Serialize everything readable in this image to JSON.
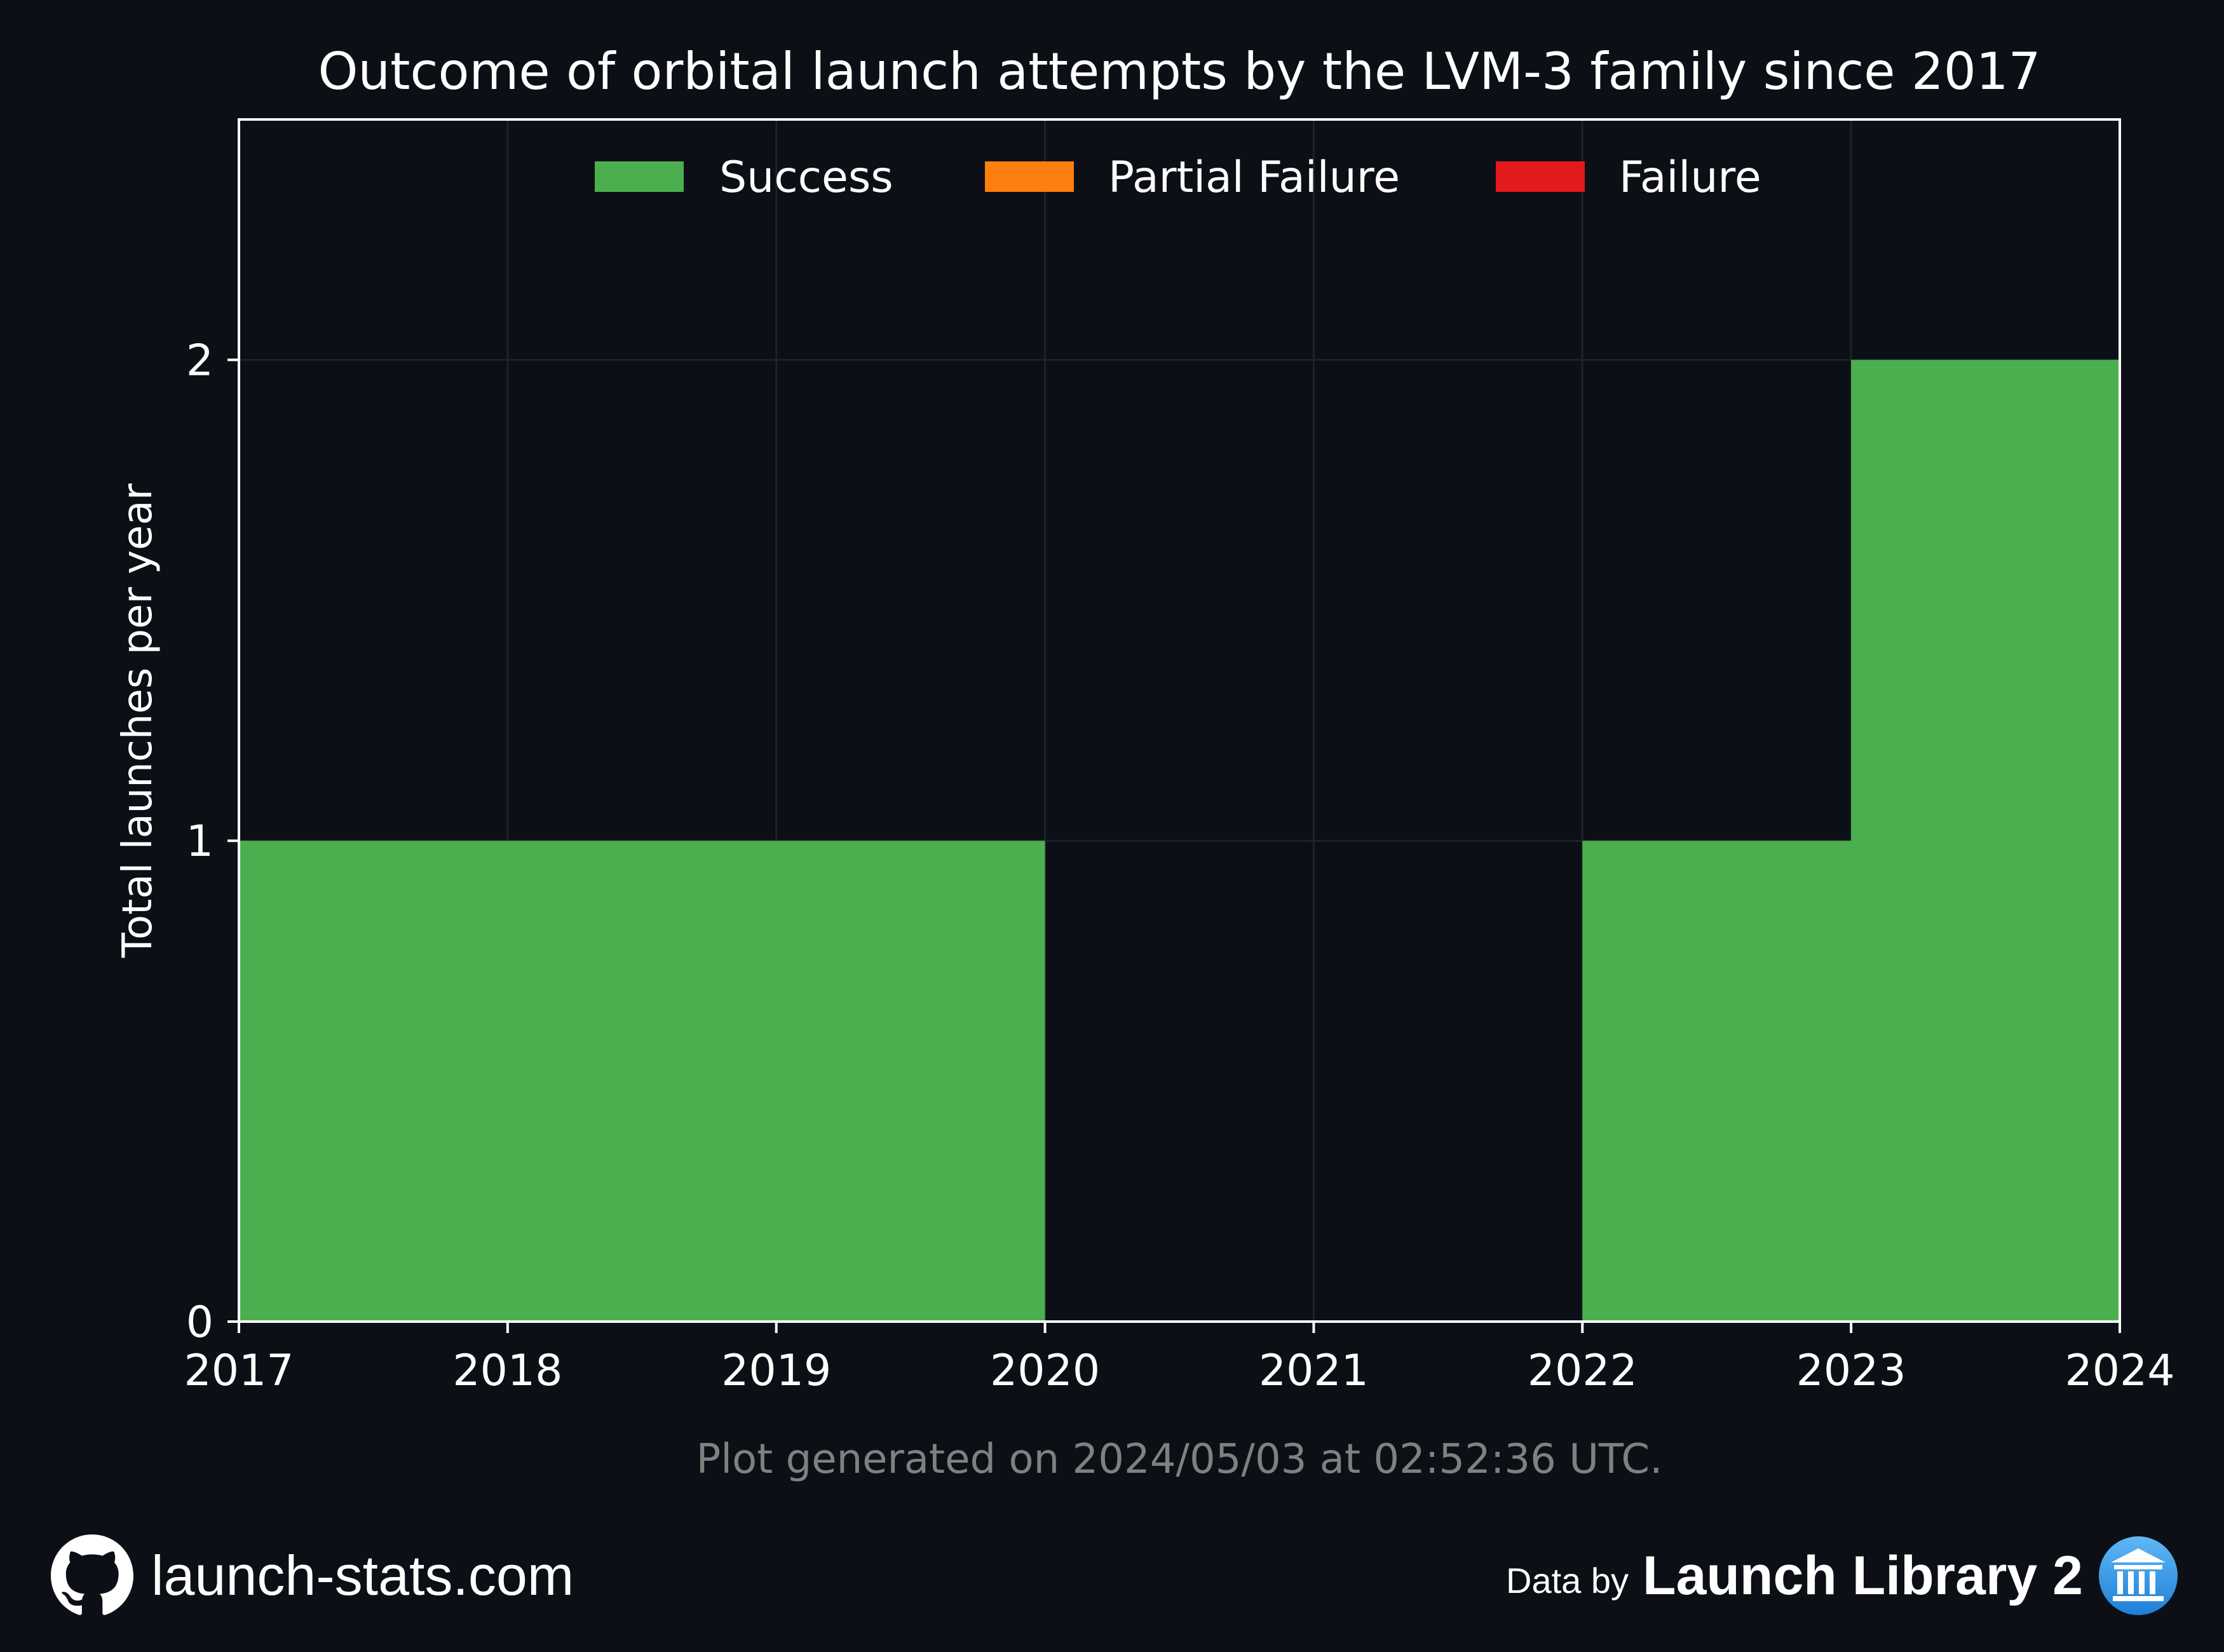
{
  "chart_data": {
    "type": "area",
    "title": "Outcome of orbital launch attempts by the LVM-3 family since 2017",
    "xlabel": "",
    "ylabel": "Total launches per year",
    "x_ticks": [
      "2017",
      "2018",
      "2019",
      "2020",
      "2021",
      "2022",
      "2023",
      "2024"
    ],
    "y_ticks": [
      "0",
      "1",
      "2"
    ],
    "xlim": [
      2017,
      2024
    ],
    "ylim": [
      0,
      2.5
    ],
    "step": "post",
    "grid": true,
    "legend_position": "top-center",
    "x": [
      2017,
      2018,
      2019,
      2020,
      2021,
      2022,
      2023
    ],
    "series": [
      {
        "name": "Success",
        "color": "#4caf4f",
        "values": [
          1,
          1,
          1,
          0,
          0,
          1,
          2
        ]
      },
      {
        "name": "Partial Failure",
        "color": "#ff7f0e",
        "values": [
          0,
          0,
          0,
          0,
          0,
          0,
          0
        ]
      },
      {
        "name": "Failure",
        "color": "#e31a1c",
        "values": [
          0,
          0,
          0,
          0,
          0,
          0,
          0
        ]
      }
    ]
  },
  "colors": {
    "background": "#0c0f16",
    "axes": "#ffffff",
    "grid": "#1e222b",
    "footnote": "#808080"
  },
  "footnote": "Plot generated on 2024/05/03 at 02:52:36 UTC.",
  "footer": {
    "site": "launch-stats.com",
    "site_icon": "github-icon",
    "data_by": "Data by",
    "source": "Launch Library 2",
    "source_icon": "launch-library-icon"
  }
}
